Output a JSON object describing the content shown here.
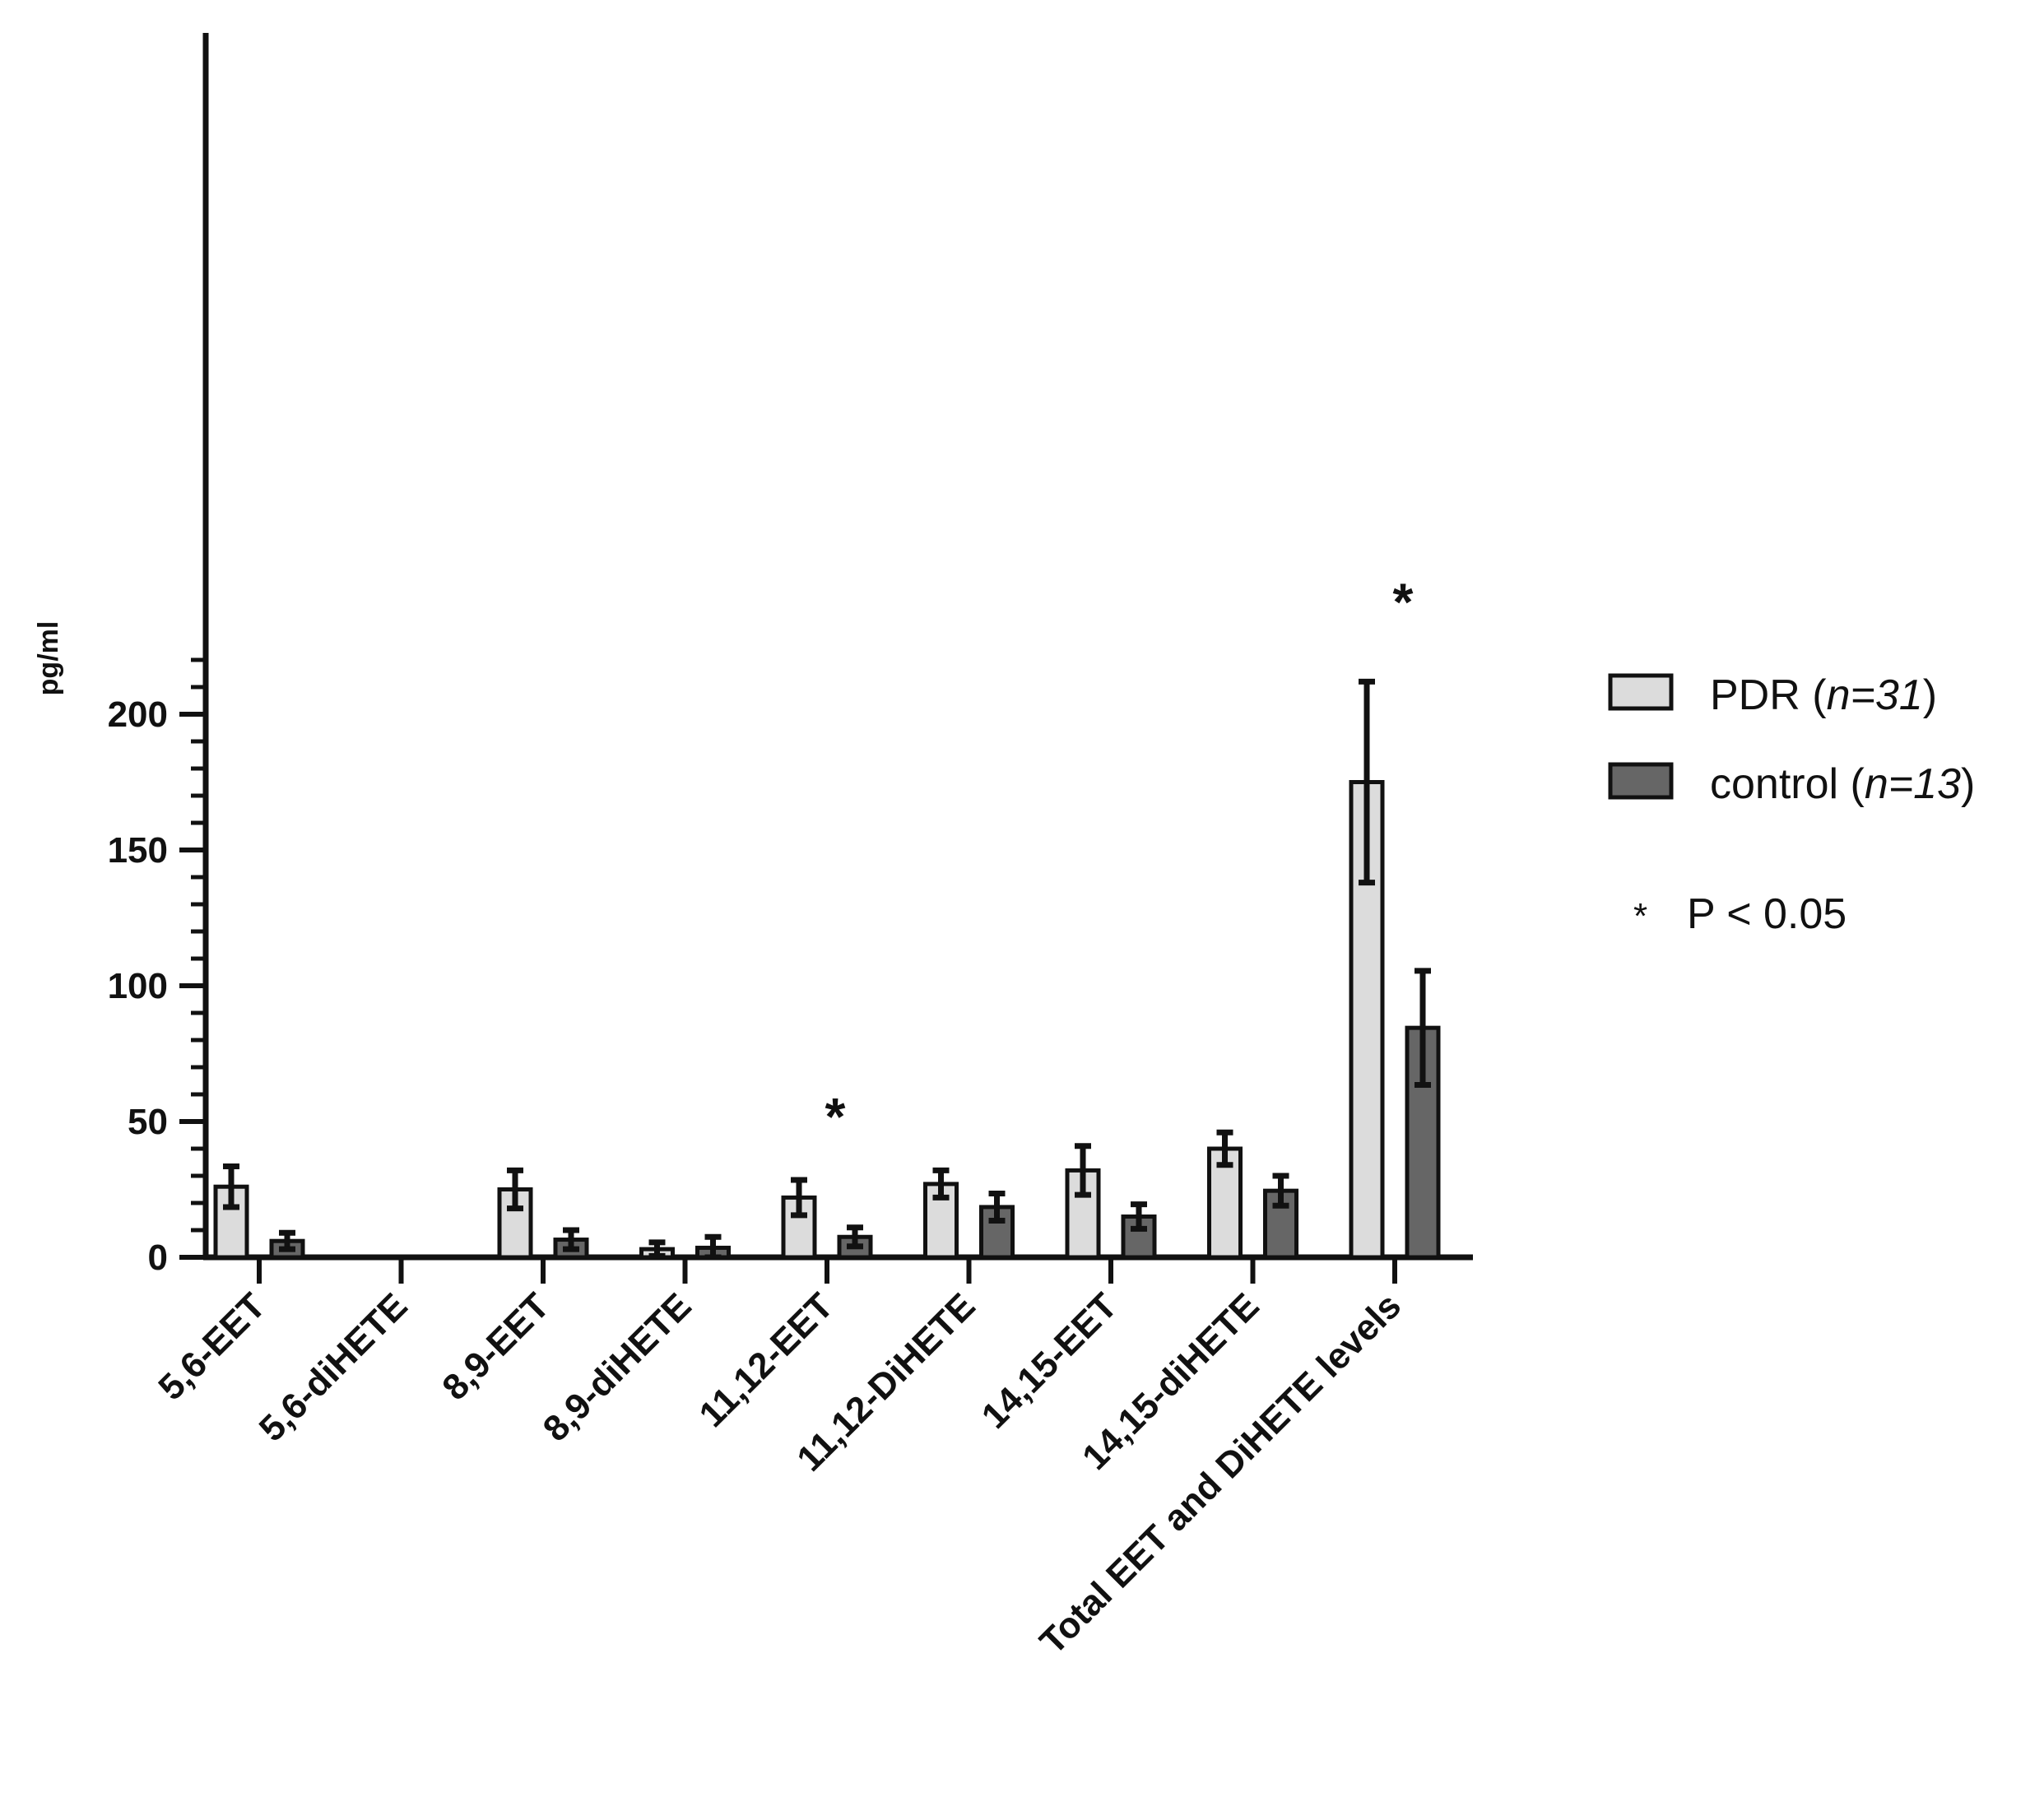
{
  "chart_data": {
    "type": "bar",
    "categories": [
      "5,6-EET",
      "5,6-diHETE",
      "8,9-EET",
      "8,9-diHETE",
      "11,12-EET",
      "11,12-DiHETE",
      "14,15-EET",
      "14,15-diHETE",
      "Total EET and DiHETE levels"
    ],
    "series": [
      {
        "name": "PDR (n=31)",
        "label_main": "PDR (",
        "label_italic": "n=31",
        "label_close": ")",
        "color": "#dcdcdc",
        "values": [
          26,
          0.2,
          25,
          3,
          22,
          27,
          32,
          40,
          175
        ],
        "errors": [
          7.5,
          0,
          7,
          2.5,
          6.5,
          5,
          9,
          6,
          37
        ]
      },
      {
        "name": "control (n=13)",
        "label_main": "control (",
        "label_italic": "n=13",
        "label_close": ")",
        "color": "#666666",
        "values": [
          6,
          0,
          6.5,
          3.5,
          7.5,
          18.5,
          15,
          24.5,
          84.5
        ],
        "errors": [
          3,
          0,
          3.5,
          4,
          3.5,
          5,
          4.5,
          5.5,
          21
        ]
      }
    ],
    "ylabel": "pg/ml",
    "ylim": [
      0,
      225
    ],
    "yticks": [
      0,
      50,
      100,
      150,
      200
    ],
    "y_minor_step": 10,
    "significance": {
      "marker": "*",
      "categories": [
        4,
        8
      ],
      "legend_marker": "*",
      "legend_text": "P < 0.05"
    }
  }
}
